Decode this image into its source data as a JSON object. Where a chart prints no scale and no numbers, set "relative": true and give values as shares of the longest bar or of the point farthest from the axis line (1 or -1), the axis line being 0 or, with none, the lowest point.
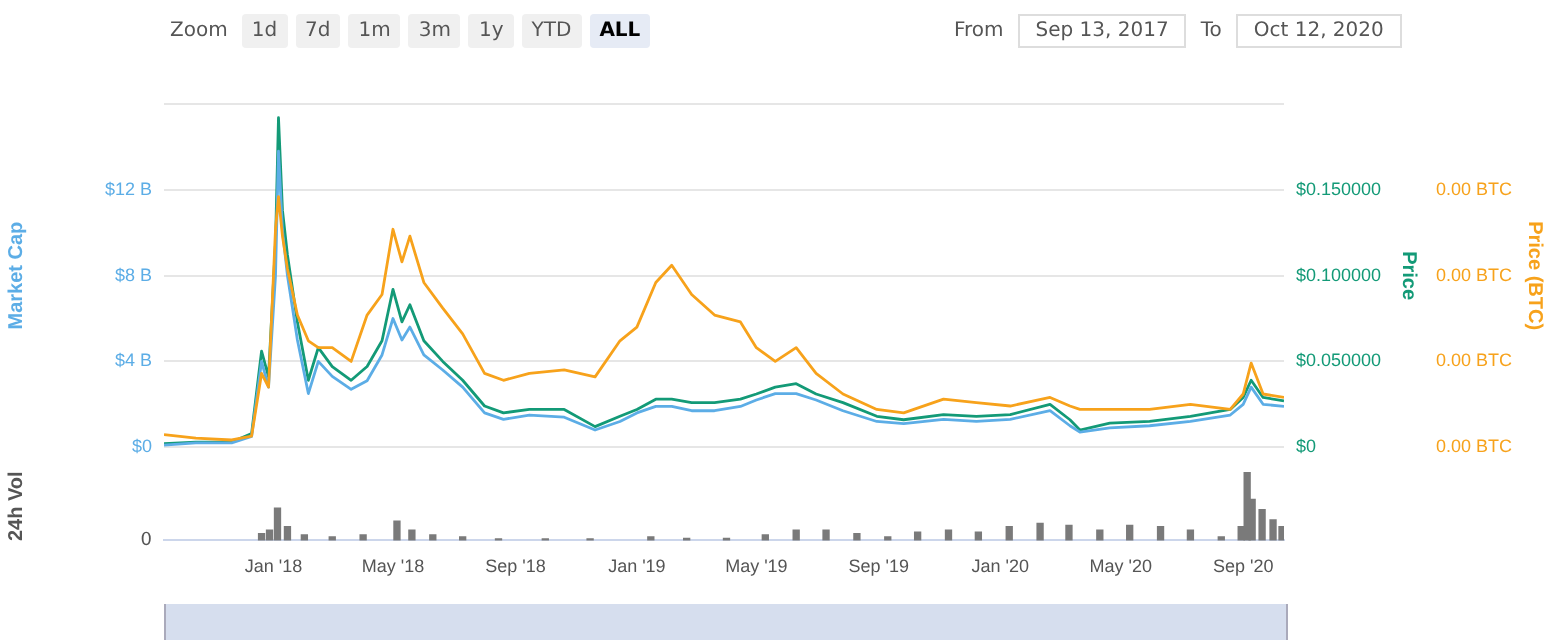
{
  "chart_data": [
    {
      "type": "line",
      "annotations": [
        "Zoom",
        "1d",
        "7d",
        "1m",
        "3m",
        "1y",
        "YTD",
        "ALL",
        "From",
        "Sep 13, 2017",
        "To",
        "Oct 12, 2020"
      ],
      "ylabel": "Market Cap",
      "y2label": "Price",
      "y3label": "Price (BTC)",
      "x": [
        "2017-09-13",
        "2017-10-15",
        "2017-11-20",
        "2017-12-10",
        "2017-12-20",
        "2017-12-27",
        "2018-01-03",
        "2018-01-06",
        "2018-01-10",
        "2018-01-15",
        "2018-01-25",
        "2018-02-05",
        "2018-02-15",
        "2018-03-01",
        "2018-03-20",
        "2018-04-05",
        "2018-04-20",
        "2018-05-01",
        "2018-05-10",
        "2018-05-18",
        "2018-06-01",
        "2018-06-20",
        "2018-07-10",
        "2018-08-01",
        "2018-08-20",
        "2018-09-15",
        "2018-10-20",
        "2018-11-20",
        "2018-12-15",
        "2019-01-01",
        "2019-01-20",
        "2019-02-05",
        "2019-02-25",
        "2019-03-20",
        "2019-04-15",
        "2019-05-01",
        "2019-05-20",
        "2019-06-10",
        "2019-06-30",
        "2019-07-27",
        "2019-08-30",
        "2019-09-26",
        "2019-11-05",
        "2019-12-08",
        "2020-01-11",
        "2020-02-20",
        "2020-03-11",
        "2020-03-21",
        "2020-04-20",
        "2020-05-30",
        "2020-07-10",
        "2020-08-19",
        "2020-09-01",
        "2020-09-09",
        "2020-09-21",
        "2020-10-12"
      ],
      "xlim": [
        "2017-09-13",
        "2020-10-12"
      ],
      "series": [
        {
          "color": "#f7a21b",
          "axis": "y3",
          "values": [
            7.3e-07,
            5.3e-07,
            4.2e-07,
            6.5e-07,
            4.3e-06,
            3.5e-06,
            1.27e-05,
            1.46e-05,
            1.23e-05,
            1.04e-05,
            7.7e-06,
            6.2e-06,
            5.8e-06,
            5.8e-06,
            5e-06,
            7.7e-06,
            8.9e-06,
            1.27e-05,
            1.08e-05,
            1.23e-05,
            9.6e-06,
            8.1e-06,
            6.6e-06,
            4.3e-06,
            3.9e-06,
            4.3e-06,
            4.5e-06,
            4.1e-06,
            6.2e-06,
            7e-06,
            9.6e-06,
            1.06e-05,
            8.9e-06,
            7.7e-06,
            7.3e-06,
            5.8e-06,
            5e-06,
            5.8e-06,
            4.3e-06,
            3.1e-06,
            2.2e-06,
            2e-06,
            2.8e-06,
            2.6e-06,
            2.4e-06,
            2.9e-06,
            2.4e-06,
            2.2e-06,
            2.2e-06,
            2.2e-06,
            2.5e-06,
            2.2e-06,
            3.1e-06,
            4.9e-06,
            3.1e-06,
            2.9e-06
          ]
        },
        {
          "color": "#5cade6",
          "axis": "y",
          "values": [
            0.1,
            0.2,
            0.2,
            0.5,
            4,
            2.8,
            8,
            13.8,
            10.1,
            8,
            5,
            2.5,
            4,
            3.3,
            2.7,
            3.1,
            4.3,
            6,
            5,
            5.6,
            4.3,
            3.6,
            2.8,
            1.6,
            1.3,
            1.5,
            1.4,
            0.8,
            1.2,
            1.6,
            1.9,
            1.9,
            1.7,
            1.7,
            1.9,
            2.2,
            2.5,
            2.5,
            2.2,
            1.7,
            1.2,
            1.1,
            1.3,
            1.2,
            1.3,
            1.7,
            1,
            0.7,
            0.9,
            1,
            1.2,
            1.5,
            2,
            2.8,
            2,
            1.9
          ]
        },
        {
          "color": "#139a77",
          "axis": "y2",
          "values": [
            0.002,
            0.003,
            0.003,
            0.008,
            0.056,
            0.041,
            0.119,
            0.192,
            0.138,
            0.112,
            0.073,
            0.039,
            0.058,
            0.047,
            0.039,
            0.047,
            0.062,
            0.092,
            0.073,
            0.083,
            0.062,
            0.05,
            0.039,
            0.024,
            0.02,
            0.022,
            0.022,
            0.012,
            0.018,
            0.022,
            0.028,
            0.028,
            0.026,
            0.026,
            0.028,
            0.031,
            0.035,
            0.037,
            0.031,
            0.026,
            0.018,
            0.016,
            0.019,
            0.018,
            0.019,
            0.025,
            0.016,
            0.01,
            0.014,
            0.015,
            0.018,
            0.022,
            0.029,
            0.039,
            0.029,
            0.027
          ]
        }
      ],
      "ylim": [
        0,
        16
      ],
      "yticks": [
        {
          "value": 0,
          "label": "$0"
        },
        {
          "value": 4,
          "label": "$4 B"
        },
        {
          "value": 8,
          "label": "$8 B"
        },
        {
          "value": 12,
          "label": "$12 B"
        },
        {
          "value": 16,
          "label": null
        }
      ],
      "y2lim": [
        0,
        0.2
      ],
      "y2ticks": [
        {
          "value": 0,
          "label": "$0"
        },
        {
          "value": 0.05,
          "label": "$0.050000"
        },
        {
          "value": 0.1,
          "label": "$0.100000"
        },
        {
          "value": 0.15,
          "label": "$0.150000"
        }
      ],
      "y3lim": [
        0,
        2e-05
      ],
      "y3ticks": [
        {
          "value": 0,
          "label": "0.00 BTC"
        },
        {
          "value": 5e-06,
          "label": "0.00 BTC"
        },
        {
          "value": 1e-05,
          "label": "0.00 BTC"
        },
        {
          "value": 1.5e-05,
          "label": "0.00 BTC"
        }
      ],
      "tick_labels": "y",
      "grid": "y",
      "legend": false,
      "marker": "none"
    },
    {
      "type": "bar",
      "ylabel": "24h Vol",
      "relative": true,
      "color": "#7a7a7a",
      "annotations": [
        "0"
      ],
      "x": [
        "2017-12-20",
        "2017-12-28",
        "2018-01-05",
        "2018-01-15",
        "2018-02-01",
        "2018-03-01",
        "2018-04-01",
        "2018-05-05",
        "2018-05-20",
        "2018-06-10",
        "2018-07-10",
        "2018-08-15",
        "2018-10-01",
        "2018-11-15",
        "2019-01-15",
        "2019-02-20",
        "2019-04-01",
        "2019-05-10",
        "2019-06-10",
        "2019-07-10",
        "2019-08-10",
        "2019-09-10",
        "2019-10-10",
        "2019-11-10",
        "2019-12-10",
        "2020-01-10",
        "2020-02-10",
        "2020-03-10",
        "2020-04-10",
        "2020-05-10",
        "2020-06-10",
        "2020-07-10",
        "2020-08-10",
        "2020-08-30",
        "2020-09-05",
        "2020-09-10",
        "2020-09-20",
        "2020-10-01",
        "2020-10-10"
      ],
      "values": [
        0.1,
        0.15,
        0.47,
        0.2,
        0.08,
        0.05,
        0.08,
        0.28,
        0.15,
        0.08,
        0.05,
        0.02,
        0.02,
        0.02,
        0.05,
        0.03,
        0.03,
        0.08,
        0.15,
        0.15,
        0.1,
        0.05,
        0.12,
        0.15,
        0.12,
        0.2,
        0.25,
        0.22,
        0.15,
        0.22,
        0.2,
        0.15,
        0.05,
        0.2,
        1,
        0.6,
        0.45,
        0.3,
        0.2
      ],
      "xlim": [
        "2017-09-13",
        "2020-10-12"
      ],
      "xticks": [
        {
          "value": "2018-01-01",
          "label": "Jan '18"
        },
        {
          "value": "2018-05-01",
          "label": "May '18"
        },
        {
          "value": "2018-09-01",
          "label": "Sep '18"
        },
        {
          "value": "2019-01-01",
          "label": "Jan '19"
        },
        {
          "value": "2019-05-01",
          "label": "May '19"
        },
        {
          "value": "2019-09-01",
          "label": "Sep '19"
        },
        {
          "value": "2020-01-01",
          "label": "Jan '20"
        },
        {
          "value": "2020-05-01",
          "label": "May '20"
        },
        {
          "value": "2020-09-01",
          "label": "Sep '20"
        }
      ],
      "grid": false,
      "legend": false
    }
  ]
}
